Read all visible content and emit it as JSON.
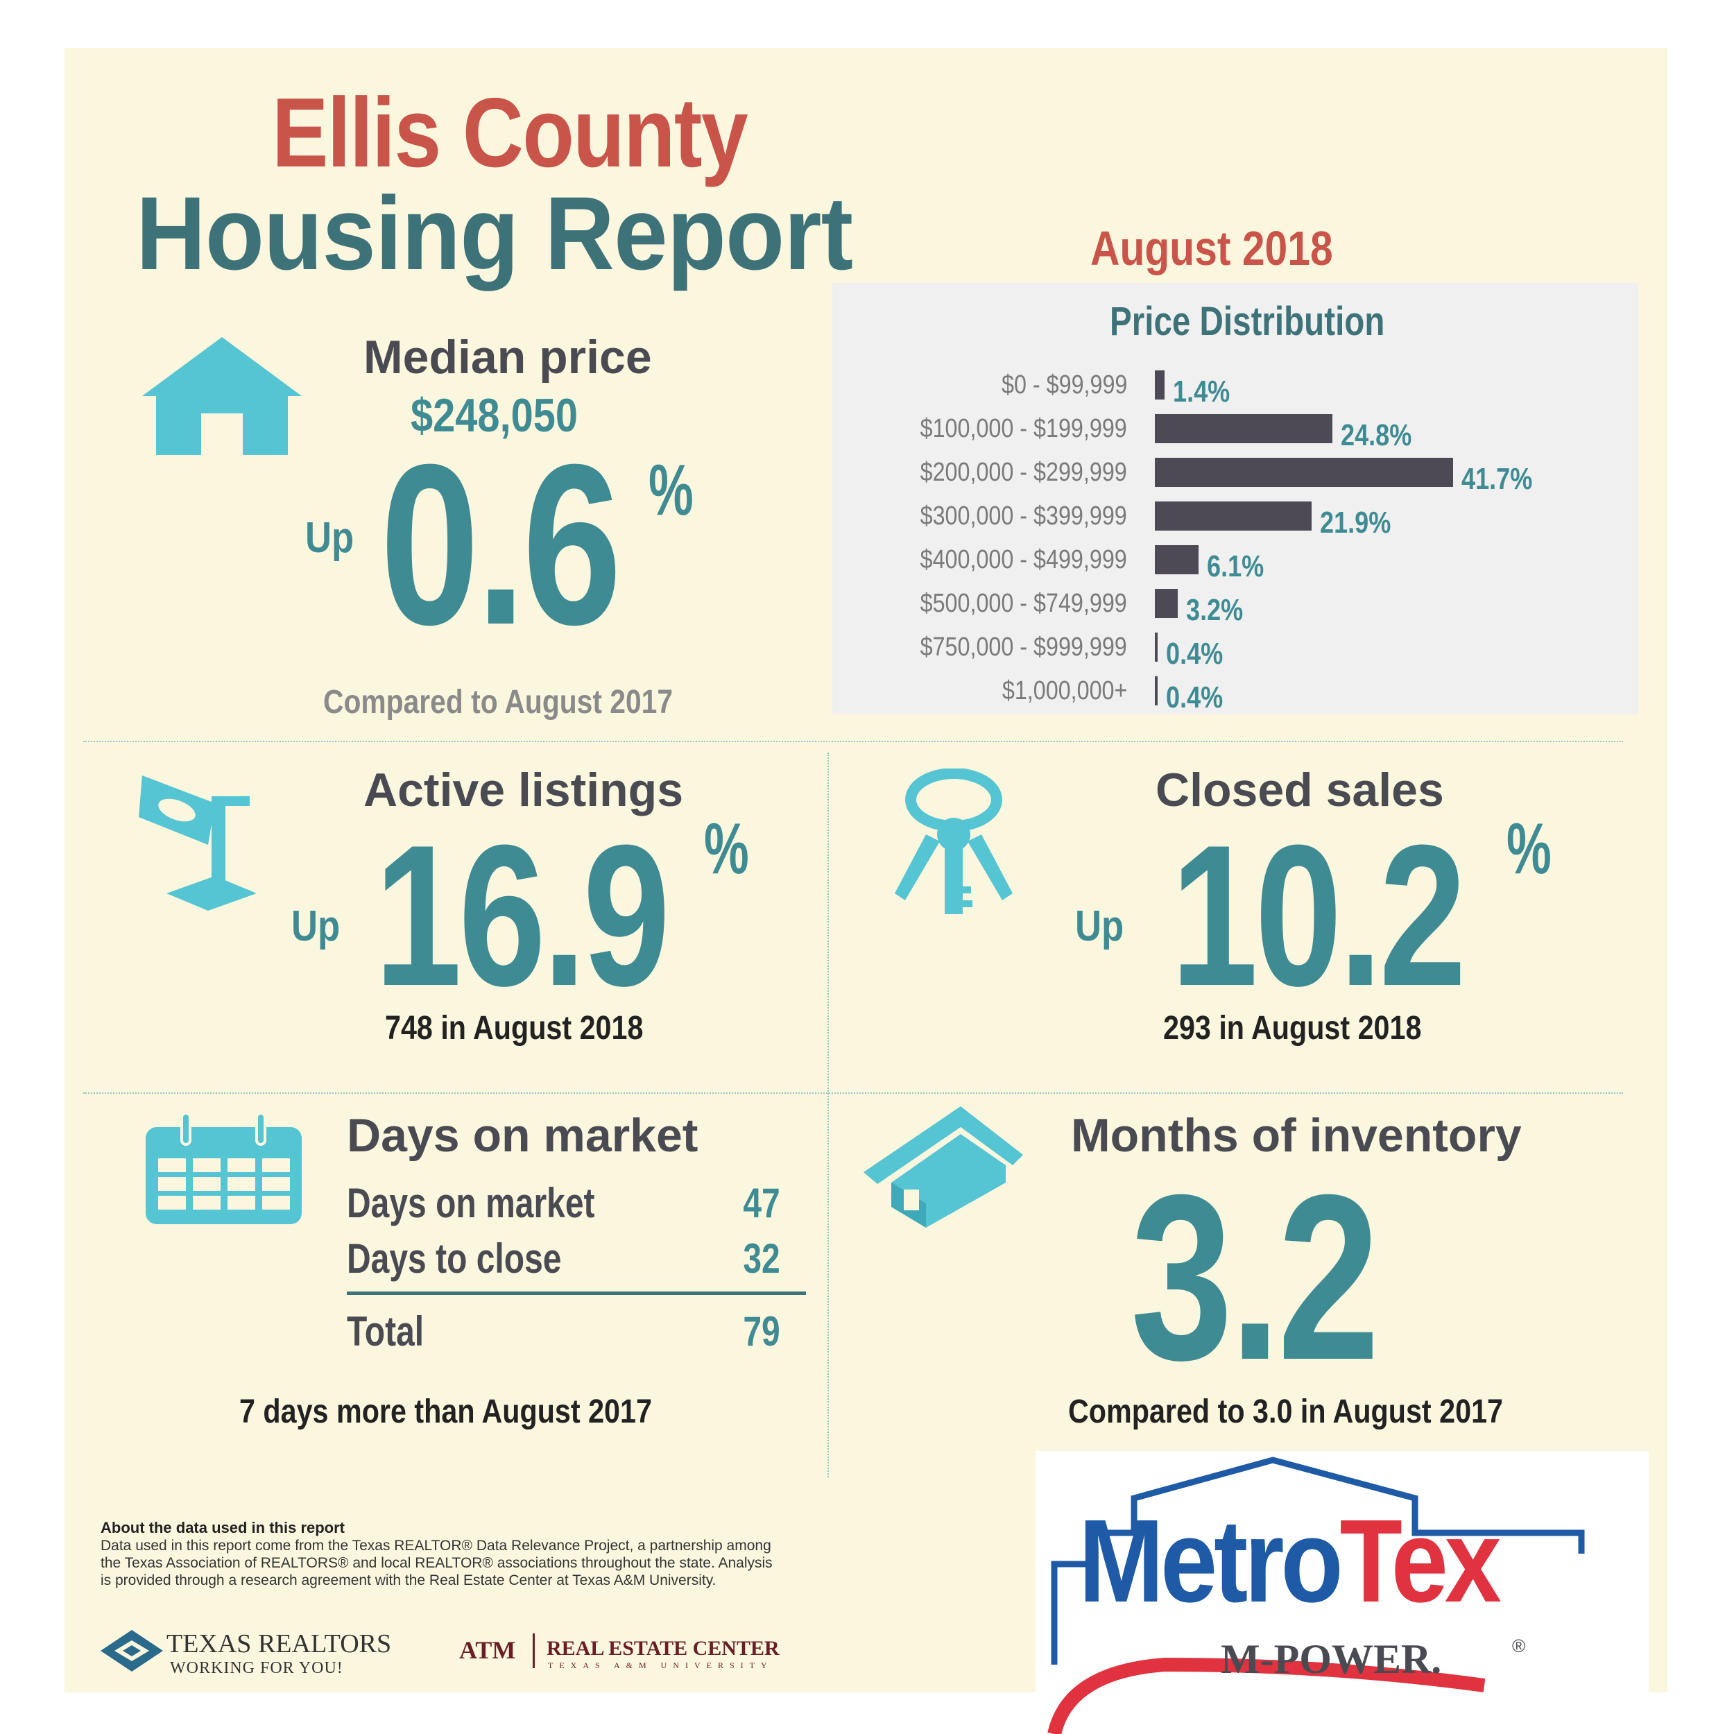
{
  "title": {
    "county": "Ellis County",
    "report": "Housing Report",
    "date": "August 2018"
  },
  "median_price": {
    "heading": "Median price",
    "value": "$248,050",
    "direction": "Up",
    "change": "0.6",
    "unit": "%",
    "comparison": "Compared to August 2017"
  },
  "price_distribution": {
    "heading": "Price Distribution"
  },
  "chart_data": {
    "type": "bar",
    "orientation": "horizontal",
    "title": "Price Distribution",
    "categories": [
      "$0 - $99,999",
      "$100,000 - $199,999",
      "$200,000 - $299,999",
      "$300,000 - $399,999",
      "$400,000 - $499,999",
      "$500,000 - $749,999",
      "$750,000 - $999,999",
      "$1,000,000+"
    ],
    "values": [
      1.4,
      24.8,
      41.7,
      21.9,
      6.1,
      3.2,
      0.4,
      0.4
    ],
    "value_labels": [
      "1.4%",
      "24.8%",
      "41.7%",
      "21.9%",
      "6.1%",
      "3.2%",
      "0.4%",
      "0.4%"
    ],
    "bar_color": "#4d4a55",
    "label_color": "#3f8b93"
  },
  "active_listings": {
    "heading": "Active listings",
    "direction": "Up",
    "change": "16.9",
    "unit": "%",
    "detail": "748 in August 2018"
  },
  "closed_sales": {
    "heading": "Closed sales",
    "direction": "Up",
    "change": "10.2",
    "unit": "%",
    "detail": "293 in August 2018"
  },
  "days_on_market": {
    "heading": "Days on market",
    "rows": [
      {
        "label": "Days on market",
        "value": "47"
      },
      {
        "label": "Days to close",
        "value": "32"
      }
    ],
    "total_label": "Total",
    "total_value": "79",
    "comparison": "7 days more than August 2017"
  },
  "months_inventory": {
    "heading": "Months of inventory",
    "value": "3.2",
    "comparison": "Compared to 3.0 in August 2017"
  },
  "about": {
    "heading": "About the data used in this report",
    "body": "Data used in this report come from the Texas REALTOR® Data Relevance Project, a partnership among the Texas Association of REALTORS® and local REALTOR® associations throughout the state. Analysis is provided through a research agreement with the Real Estate Center at Texas A&M University."
  },
  "logos": {
    "texas_realtors": "TEXAS REALTORS",
    "texas_realtors_tagline": "WORKING FOR YOU!",
    "atm": "ATM",
    "rec": "REAL ESTATE CENTER",
    "rec_sub": "TEXAS A&M UNIVERSITY",
    "metrotex_metro": "Metro",
    "metrotex_tex": "Tex",
    "metrotex_tagline": "M-POWER.",
    "registered": "®"
  },
  "colors": {
    "background": "#fbf7df",
    "teal": "#3f8b93",
    "red": "#c9544a",
    "icon": "#55c4d3",
    "metro_blue": "#1f5aa6",
    "tex_red": "#e0333f"
  },
  "icons": [
    "house-icon",
    "for-sale-sign-icon",
    "keys-icon",
    "calendar-icon",
    "house-inventory-icon"
  ]
}
